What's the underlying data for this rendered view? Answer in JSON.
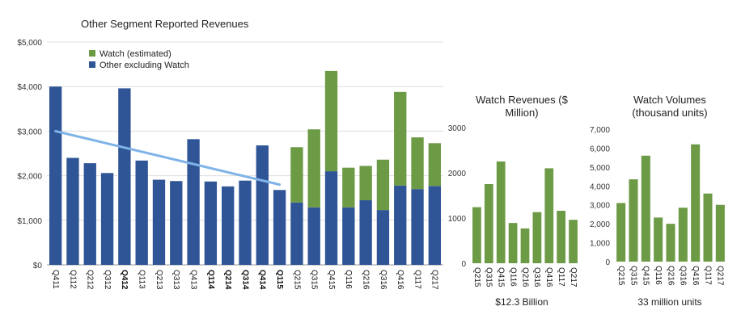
{
  "colors": {
    "watch": "#6d9a45",
    "other": "#2f5597",
    "trend": "#7fb3e8"
  },
  "chart_data": [
    {
      "type": "bar",
      "stacked": true,
      "title": "Other Segment Reported Revenues",
      "categories": [
        "Q411",
        "Q112",
        "Q212",
        "Q312",
        "Q412",
        "Q113",
        "Q213",
        "Q313",
        "Q413",
        "Q114",
        "Q214",
        "Q314",
        "Q414",
        "Q115",
        "Q215",
        "Q315",
        "Q415",
        "Q116",
        "Q216",
        "Q316",
        "Q416",
        "Q117",
        "Q217"
      ],
      "bold_categories": [
        "Q412",
        "Q114",
        "Q214",
        "Q314",
        "Q414",
        "Q115"
      ],
      "series": [
        {
          "name": "Other excluding Watch",
          "color_key": "other",
          "values": [
            4000,
            2400,
            2280,
            2060,
            3960,
            2340,
            1910,
            1880,
            2820,
            1870,
            1760,
            1890,
            2680,
            1680,
            1400,
            1290,
            2100,
            1290,
            1450,
            1230,
            1780,
            1700,
            1770
          ]
        },
        {
          "name": "Watch (estimated)",
          "color_key": "watch",
          "values": [
            0,
            0,
            0,
            0,
            0,
            0,
            0,
            0,
            0,
            0,
            0,
            0,
            0,
            0,
            1240,
            1750,
            2250,
            890,
            770,
            1130,
            2100,
            1160,
            960
          ]
        }
      ],
      "trend": {
        "from_index": 0,
        "from_value": 3000,
        "to_index": 13,
        "to_value": 1800
      },
      "y_ticks": [
        "$0",
        "$1,000",
        "$2,000",
        "$3,000",
        "$4,000",
        "$5,000"
      ],
      "ylim": [
        0,
        5000
      ],
      "grid": true,
      "legend": "top-left"
    },
    {
      "type": "bar",
      "title": "Watch Revenues ($ Million)",
      "title_lines": [
        "Watch Revenues ($",
        "Million)"
      ],
      "categories": [
        "Q215",
        "Q315",
        "Q415",
        "Q116",
        "Q216",
        "Q316",
        "Q416",
        "Q117",
        "Q217"
      ],
      "values": [
        1240,
        1750,
        2250,
        890,
        770,
        1130,
        2100,
        1160,
        960
      ],
      "y_ticks": [
        "0",
        "1000",
        "2000",
        "3000"
      ],
      "ylim": [
        0,
        3000
      ],
      "footer": "$12.3 Billion"
    },
    {
      "type": "bar",
      "title": "Watch Volumes (thousand units)",
      "title_lines": [
        "Watch Volumes",
        "(thousand units)"
      ],
      "categories": [
        "Q215",
        "Q315",
        "Q415",
        "Q116",
        "Q216",
        "Q316",
        "Q416",
        "Q117",
        "Q217"
      ],
      "values": [
        3100,
        4350,
        5600,
        2330,
        2000,
        2850,
        6200,
        3600,
        3000
      ],
      "y_ticks": [
        "0",
        "1,000",
        "2,000",
        "3,000",
        "4,000",
        "5,000",
        "6,000",
        "7,000"
      ],
      "ylim": [
        0,
        7000
      ],
      "footer": "33 million units"
    }
  ]
}
